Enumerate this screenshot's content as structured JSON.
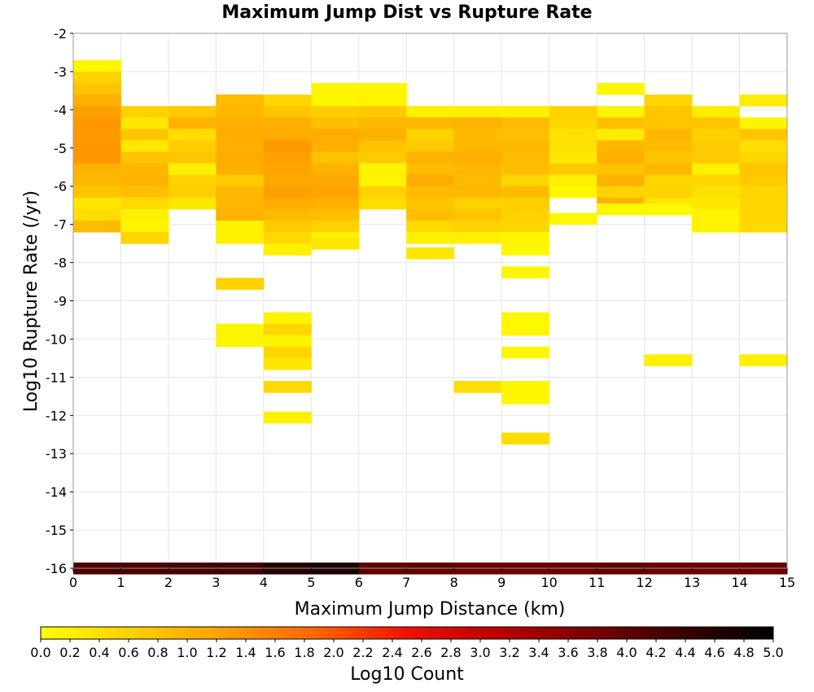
{
  "chart_data": {
    "type": "heatmap",
    "title": "Maximum Jump Dist vs Rupture Rate",
    "xlabel": "Maximum Jump Distance (km)",
    "ylabel": "Log10 Rupture Rate (/yr)",
    "xlim": [
      0,
      15
    ],
    "ylim": [
      -16,
      -2
    ],
    "x_bin_width": 1,
    "y_bin_height": 0.3,
    "grid": true,
    "x_ticks": [
      "0",
      "1",
      "2",
      "3",
      "4",
      "5",
      "6",
      "7",
      "8",
      "9",
      "10",
      "11",
      "12",
      "13",
      "14",
      "15"
    ],
    "y_ticks": [
      "-2",
      "-3",
      "-4",
      "-5",
      "-6",
      "-7",
      "-8",
      "-9",
      "-10",
      "-11",
      "-12",
      "-13",
      "-14",
      "-15",
      "-16"
    ],
    "colorbar": {
      "label": "Log10 Count",
      "range": [
        0,
        5
      ],
      "tick_labels": [
        "0.0",
        "0.2",
        "0.4",
        "0.6",
        "0.8",
        "1.0",
        "1.2",
        "1.4",
        "1.6",
        "1.8",
        "2.0",
        "2.2",
        "2.4",
        "2.6",
        "2.8",
        "3.0",
        "3.2",
        "3.4",
        "3.6",
        "3.8",
        "4.0",
        "4.2",
        "4.4",
        "4.6",
        "4.8",
        "5.0"
      ],
      "colors": [
        "#ffff00",
        "#ffd000",
        "#ffa000",
        "#ff6600",
        "#ee1100",
        "#bb0000",
        "#7a0000",
        "#3a0000",
        "#000000"
      ]
    },
    "cells": [
      {
        "x": 0,
        "y": -2.85,
        "v": 0.1
      },
      {
        "x": 0,
        "y": -3.15,
        "v": 0.6
      },
      {
        "x": 0,
        "y": -3.45,
        "v": 0.8
      },
      {
        "x": 0,
        "y": -3.75,
        "v": 1.05
      },
      {
        "x": 0,
        "y": -4.05,
        "v": 1.25
      },
      {
        "x": 0,
        "y": -4.35,
        "v": 1.35
      },
      {
        "x": 0,
        "y": -4.65,
        "v": 1.3
      },
      {
        "x": 0,
        "y": -4.95,
        "v": 1.35
      },
      {
        "x": 0,
        "y": -5.25,
        "v": 1.35
      },
      {
        "x": 0,
        "y": -5.55,
        "v": 1.0
      },
      {
        "x": 0,
        "y": -5.85,
        "v": 0.95
      },
      {
        "x": 0,
        "y": -6.15,
        "v": 0.75
      },
      {
        "x": 0,
        "y": -6.45,
        "v": 0.3
      },
      {
        "x": 0,
        "y": -6.75,
        "v": 0.45
      },
      {
        "x": 0,
        "y": -7.05,
        "v": 0.9
      },
      {
        "x": 1,
        "y": -4.05,
        "v": 0.6
      },
      {
        "x": 1,
        "y": -4.35,
        "v": 0.3
      },
      {
        "x": 1,
        "y": -4.65,
        "v": 0.75
      },
      {
        "x": 1,
        "y": -4.95,
        "v": 0.3
      },
      {
        "x": 1,
        "y": -5.25,
        "v": 0.8
      },
      {
        "x": 1,
        "y": -5.55,
        "v": 0.95
      },
      {
        "x": 1,
        "y": -5.85,
        "v": 1.0
      },
      {
        "x": 1,
        "y": -6.15,
        "v": 0.85
      },
      {
        "x": 1,
        "y": -6.45,
        "v": 0.5
      },
      {
        "x": 1,
        "y": -6.75,
        "v": 0.2
      },
      {
        "x": 1,
        "y": -7.05,
        "v": 0.15
      },
      {
        "x": 1,
        "y": -7.35,
        "v": 0.55
      },
      {
        "x": 2,
        "y": -4.05,
        "v": 0.7
      },
      {
        "x": 2,
        "y": -4.35,
        "v": 1.0
      },
      {
        "x": 2,
        "y": -4.65,
        "v": 0.45
      },
      {
        "x": 2,
        "y": -4.95,
        "v": 0.65
      },
      {
        "x": 2,
        "y": -5.25,
        "v": 0.75
      },
      {
        "x": 2,
        "y": -5.55,
        "v": 0.2
      },
      {
        "x": 2,
        "y": -5.85,
        "v": 0.6
      },
      {
        "x": 2,
        "y": -6.15,
        "v": 0.65
      },
      {
        "x": 2,
        "y": -6.45,
        "v": 0.3
      },
      {
        "x": 3,
        "y": -3.75,
        "v": 0.9
      },
      {
        "x": 3,
        "y": -4.05,
        "v": 0.95
      },
      {
        "x": 3,
        "y": -4.35,
        "v": 1.05
      },
      {
        "x": 3,
        "y": -4.65,
        "v": 1.1
      },
      {
        "x": 3,
        "y": -4.95,
        "v": 1.05
      },
      {
        "x": 3,
        "y": -5.25,
        "v": 1.1
      },
      {
        "x": 3,
        "y": -5.55,
        "v": 1.05
      },
      {
        "x": 3,
        "y": -5.85,
        "v": 0.7
      },
      {
        "x": 3,
        "y": -6.15,
        "v": 0.95
      },
      {
        "x": 3,
        "y": -6.45,
        "v": 0.95
      },
      {
        "x": 3,
        "y": -6.75,
        "v": 1.0
      },
      {
        "x": 3,
        "y": -7.05,
        "v": 0.2
      },
      {
        "x": 3,
        "y": -7.35,
        "v": 0.2
      },
      {
        "x": 3,
        "y": -8.55,
        "v": 0.6
      },
      {
        "x": 3,
        "y": -9.75,
        "v": 0.15
      },
      {
        "x": 3,
        "y": -10.05,
        "v": 0.15
      },
      {
        "x": 4,
        "y": -3.75,
        "v": 0.55
      },
      {
        "x": 4,
        "y": -4.05,
        "v": 0.75
      },
      {
        "x": 4,
        "y": -4.35,
        "v": 1.05
      },
      {
        "x": 4,
        "y": -4.65,
        "v": 1.1
      },
      {
        "x": 4,
        "y": -4.95,
        "v": 1.3
      },
      {
        "x": 4,
        "y": -5.25,
        "v": 1.25
      },
      {
        "x": 4,
        "y": -5.55,
        "v": 1.2
      },
      {
        "x": 4,
        "y": -5.85,
        "v": 1.15
      },
      {
        "x": 4,
        "y": -6.15,
        "v": 1.25
      },
      {
        "x": 4,
        "y": -6.45,
        "v": 1.1
      },
      {
        "x": 4,
        "y": -6.75,
        "v": 0.9
      },
      {
        "x": 4,
        "y": -7.05,
        "v": 0.7
      },
      {
        "x": 4,
        "y": -7.35,
        "v": 0.5
      },
      {
        "x": 4,
        "y": -7.65,
        "v": 0.2
      },
      {
        "x": 4,
        "y": -9.45,
        "v": 0.15
      },
      {
        "x": 4,
        "y": -9.75,
        "v": 0.55
      },
      {
        "x": 4,
        "y": -10.05,
        "v": 0.15
      },
      {
        "x": 4,
        "y": -10.35,
        "v": 0.55
      },
      {
        "x": 4,
        "y": -10.65,
        "v": 0.3
      },
      {
        "x": 4,
        "y": -11.25,
        "v": 0.5
      },
      {
        "x": 4,
        "y": -12.05,
        "v": 0.2
      },
      {
        "x": 5,
        "y": -3.45,
        "v": 0.1
      },
      {
        "x": 5,
        "y": -3.75,
        "v": 0.1
      },
      {
        "x": 5,
        "y": -4.05,
        "v": 0.65
      },
      {
        "x": 5,
        "y": -4.35,
        "v": 0.85
      },
      {
        "x": 5,
        "y": -4.65,
        "v": 1.1
      },
      {
        "x": 5,
        "y": -4.95,
        "v": 1.05
      },
      {
        "x": 5,
        "y": -5.25,
        "v": 0.8
      },
      {
        "x": 5,
        "y": -5.55,
        "v": 1.0
      },
      {
        "x": 5,
        "y": -5.85,
        "v": 1.15
      },
      {
        "x": 5,
        "y": -6.15,
        "v": 1.2
      },
      {
        "x": 5,
        "y": -6.45,
        "v": 1.05
      },
      {
        "x": 5,
        "y": -6.75,
        "v": 0.85
      },
      {
        "x": 5,
        "y": -7.05,
        "v": 0.6
      },
      {
        "x": 5,
        "y": -7.35,
        "v": 0.15
      },
      {
        "x": 5,
        "y": -7.5,
        "v": 0.3
      },
      {
        "x": 6,
        "y": -3.45,
        "v": 0.1
      },
      {
        "x": 6,
        "y": -3.75,
        "v": 0.15
      },
      {
        "x": 6,
        "y": -4.05,
        "v": 0.7
      },
      {
        "x": 6,
        "y": -4.35,
        "v": 0.95
      },
      {
        "x": 6,
        "y": -4.65,
        "v": 1.0
      },
      {
        "x": 6,
        "y": -4.95,
        "v": 0.8
      },
      {
        "x": 6,
        "y": -5.25,
        "v": 0.7
      },
      {
        "x": 6,
        "y": -5.55,
        "v": 0.15
      },
      {
        "x": 6,
        "y": -5.85,
        "v": 0.15
      },
      {
        "x": 6,
        "y": -6.15,
        "v": 0.6
      },
      {
        "x": 6,
        "y": -6.45,
        "v": 0.45
      },
      {
        "x": 7,
        "y": -4.05,
        "v": 0.2
      },
      {
        "x": 7,
        "y": -4.35,
        "v": 0.95
      },
      {
        "x": 7,
        "y": -4.65,
        "v": 0.6
      },
      {
        "x": 7,
        "y": -4.95,
        "v": 0.7
      },
      {
        "x": 7,
        "y": -5.25,
        "v": 1.0
      },
      {
        "x": 7,
        "y": -5.55,
        "v": 0.85
      },
      {
        "x": 7,
        "y": -5.85,
        "v": 1.1
      },
      {
        "x": 7,
        "y": -6.15,
        "v": 0.9
      },
      {
        "x": 7,
        "y": -6.45,
        "v": 0.8
      },
      {
        "x": 7,
        "y": -6.75,
        "v": 0.85
      },
      {
        "x": 7,
        "y": -7.05,
        "v": 0.5
      },
      {
        "x": 7,
        "y": -7.35,
        "v": 0.2
      },
      {
        "x": 7,
        "y": -7.75,
        "v": 0.35
      },
      {
        "x": 8,
        "y": -4.05,
        "v": 0.2
      },
      {
        "x": 8,
        "y": -4.35,
        "v": 1.0
      },
      {
        "x": 8,
        "y": -4.65,
        "v": 0.9
      },
      {
        "x": 8,
        "y": -4.95,
        "v": 0.95
      },
      {
        "x": 8,
        "y": -5.25,
        "v": 1.05
      },
      {
        "x": 8,
        "y": -5.55,
        "v": 0.95
      },
      {
        "x": 8,
        "y": -5.85,
        "v": 0.9
      },
      {
        "x": 8,
        "y": -6.15,
        "v": 0.95
      },
      {
        "x": 8,
        "y": -6.45,
        "v": 0.6
      },
      {
        "x": 8,
        "y": -6.75,
        "v": 0.75
      },
      {
        "x": 8,
        "y": -7.05,
        "v": 0.6
      },
      {
        "x": 8,
        "y": -7.35,
        "v": 0.2
      },
      {
        "x": 8,
        "y": -11.25,
        "v": 0.45
      },
      {
        "x": 9,
        "y": -4.05,
        "v": 0.2
      },
      {
        "x": 9,
        "y": -4.35,
        "v": 0.9
      },
      {
        "x": 9,
        "y": -4.65,
        "v": 0.85
      },
      {
        "x": 9,
        "y": -4.95,
        "v": 0.95
      },
      {
        "x": 9,
        "y": -5.25,
        "v": 0.9
      },
      {
        "x": 9,
        "y": -5.55,
        "v": 0.85
      },
      {
        "x": 9,
        "y": -5.85,
        "v": 0.55
      },
      {
        "x": 9,
        "y": -6.15,
        "v": 0.9
      },
      {
        "x": 9,
        "y": -6.45,
        "v": 0.65
      },
      {
        "x": 9,
        "y": -6.75,
        "v": 0.6
      },
      {
        "x": 9,
        "y": -7.05,
        "v": 0.55
      },
      {
        "x": 9,
        "y": -7.35,
        "v": 0.1
      },
      {
        "x": 9,
        "y": -7.65,
        "v": 0.1
      },
      {
        "x": 9,
        "y": -8.25,
        "v": 0.1
      },
      {
        "x": 9,
        "y": -9.45,
        "v": 0.1
      },
      {
        "x": 9,
        "y": -9.75,
        "v": 0.1
      },
      {
        "x": 9,
        "y": -10.35,
        "v": 0.1
      },
      {
        "x": 9,
        "y": -11.25,
        "v": 0.1
      },
      {
        "x": 9,
        "y": -11.55,
        "v": 0.1
      },
      {
        "x": 9,
        "y": -12.6,
        "v": 0.45
      },
      {
        "x": 10,
        "y": -4.05,
        "v": 0.6
      },
      {
        "x": 10,
        "y": -4.35,
        "v": 0.55
      },
      {
        "x": 10,
        "y": -4.65,
        "v": 0.4
      },
      {
        "x": 10,
        "y": -4.95,
        "v": 0.4
      },
      {
        "x": 10,
        "y": -5.25,
        "v": 0.3
      },
      {
        "x": 10,
        "y": -5.55,
        "v": 0.7
      },
      {
        "x": 10,
        "y": -5.85,
        "v": 0.2
      },
      {
        "x": 10,
        "y": -6.15,
        "v": 0.1
      },
      {
        "x": 10,
        "y": -6.85,
        "v": 0.1
      },
      {
        "x": 11,
        "y": -3.45,
        "v": 0.1
      },
      {
        "x": 11,
        "y": -4.05,
        "v": 0.15
      },
      {
        "x": 11,
        "y": -4.35,
        "v": 0.85
      },
      {
        "x": 11,
        "y": -4.65,
        "v": 0.25
      },
      {
        "x": 11,
        "y": -4.95,
        "v": 0.95
      },
      {
        "x": 11,
        "y": -5.25,
        "v": 1.05
      },
      {
        "x": 11,
        "y": -5.55,
        "v": 0.8
      },
      {
        "x": 11,
        "y": -5.85,
        "v": 1.0
      },
      {
        "x": 11,
        "y": -6.15,
        "v": 0.6
      },
      {
        "x": 11,
        "y": -6.45,
        "v": 1.0
      },
      {
        "x": 11,
        "y": -6.6,
        "v": 0.1
      },
      {
        "x": 12,
        "y": -3.75,
        "v": 0.55
      },
      {
        "x": 12,
        "y": -4.05,
        "v": 0.75
      },
      {
        "x": 12,
        "y": -4.35,
        "v": 0.75
      },
      {
        "x": 12,
        "y": -4.65,
        "v": 0.95
      },
      {
        "x": 12,
        "y": -4.95,
        "v": 0.9
      },
      {
        "x": 12,
        "y": -5.25,
        "v": 0.75
      },
      {
        "x": 12,
        "y": -5.55,
        "v": 0.95
      },
      {
        "x": 12,
        "y": -5.85,
        "v": 0.55
      },
      {
        "x": 12,
        "y": -6.15,
        "v": 0.6
      },
      {
        "x": 12,
        "y": -6.45,
        "v": 0.35
      },
      {
        "x": 12,
        "y": -6.6,
        "v": 0.1
      },
      {
        "x": 12,
        "y": -10.55,
        "v": 0.2
      },
      {
        "x": 13,
        "y": -4.05,
        "v": 0.25
      },
      {
        "x": 13,
        "y": -4.35,
        "v": 0.75
      },
      {
        "x": 13,
        "y": -4.65,
        "v": 0.6
      },
      {
        "x": 13,
        "y": -4.95,
        "v": 0.7
      },
      {
        "x": 13,
        "y": -5.25,
        "v": 0.7
      },
      {
        "x": 13,
        "y": -5.55,
        "v": 0.2
      },
      {
        "x": 13,
        "y": -5.85,
        "v": 0.55
      },
      {
        "x": 13,
        "y": -6.15,
        "v": 0.4
      },
      {
        "x": 13,
        "y": -6.45,
        "v": 0.3
      },
      {
        "x": 13,
        "y": -6.75,
        "v": 0.15
      },
      {
        "x": 13,
        "y": -7.05,
        "v": 0.15
      },
      {
        "x": 14,
        "y": -3.75,
        "v": 0.25
      },
      {
        "x": 14,
        "y": -4.35,
        "v": 0.15
      },
      {
        "x": 14,
        "y": -4.65,
        "v": 0.75
      },
      {
        "x": 14,
        "y": -4.95,
        "v": 0.45
      },
      {
        "x": 14,
        "y": -5.25,
        "v": 0.55
      },
      {
        "x": 14,
        "y": -5.55,
        "v": 0.75
      },
      {
        "x": 14,
        "y": -5.85,
        "v": 0.7
      },
      {
        "x": 14,
        "y": -6.15,
        "v": 0.55
      },
      {
        "x": 14,
        "y": -6.45,
        "v": 0.55
      },
      {
        "x": 14,
        "y": -6.75,
        "v": 0.55
      },
      {
        "x": 14,
        "y": -7.05,
        "v": 0.5
      },
      {
        "x": 14,
        "y": -10.55,
        "v": 0.2
      },
      {
        "x": 0,
        "y": -16,
        "v": 4.2
      },
      {
        "x": 1,
        "y": -16,
        "v": 4.2
      },
      {
        "x": 2,
        "y": -16,
        "v": 4.25
      },
      {
        "x": 3,
        "y": -16,
        "v": 4.3
      },
      {
        "x": 4,
        "y": -16,
        "v": 4.6
      },
      {
        "x": 5,
        "y": -16,
        "v": 4.7
      },
      {
        "x": 6,
        "y": -16,
        "v": 4.0
      },
      {
        "x": 7,
        "y": -16,
        "v": 4.0
      },
      {
        "x": 8,
        "y": -16,
        "v": 3.9
      },
      {
        "x": 9,
        "y": -16,
        "v": 3.9
      },
      {
        "x": 10,
        "y": -16,
        "v": 3.95
      },
      {
        "x": 11,
        "y": -16,
        "v": 4.0
      },
      {
        "x": 12,
        "y": -16,
        "v": 3.9
      },
      {
        "x": 13,
        "y": -16,
        "v": 3.9
      },
      {
        "x": 14,
        "y": -16,
        "v": 3.95
      }
    ]
  }
}
